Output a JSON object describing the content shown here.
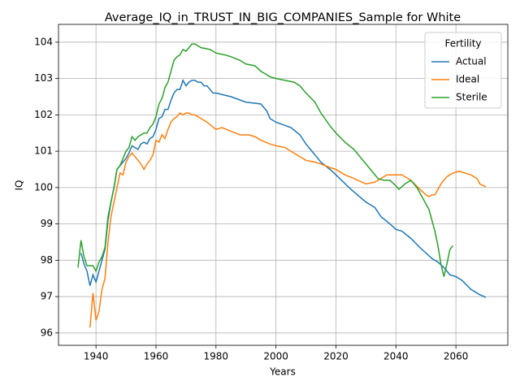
{
  "chart_data": {
    "type": "line",
    "title": "Average_IQ_in_TRUST_IN_BIG_COMPANIES_Sample for White",
    "x_label": "Years",
    "y_label": "IQ",
    "xlim": [
      1927.5,
      2077.3
    ],
    "ylim": [
      95.66,
      104.49
    ],
    "xticks": [
      1940,
      1960,
      1980,
      2000,
      2020,
      2040,
      2060
    ],
    "yticks": [
      96,
      97,
      98,
      99,
      100,
      101,
      102,
      103,
      104
    ],
    "grid": true,
    "legend_title": "Fertility",
    "legend_loc": "upper right",
    "series": [
      {
        "name": "Actual",
        "color": "#1f77b4",
        "x": [
          1935,
          1936,
          1937,
          1938,
          1939,
          1940,
          1941,
          1942,
          1943,
          1944,
          1945,
          1946,
          1947,
          1948,
          1949,
          1950,
          1951,
          1952,
          1953,
          1954,
          1955,
          1956,
          1957,
          1958,
          1959,
          1960,
          1961,
          1962,
          1963,
          1964,
          1965,
          1966,
          1967,
          1968,
          1969,
          1970,
          1971,
          1972,
          1973,
          1974,
          1975,
          1976,
          1977,
          1978,
          1979,
          1980,
          1985,
          1990,
          1995,
          1997,
          1998,
          2000,
          2005,
          2008,
          2010,
          2012,
          2015,
          2018,
          2020,
          2025,
          2030,
          2033,
          2035,
          2038,
          2040,
          2042,
          2045,
          2048,
          2050,
          2052,
          2054,
          2056,
          2058,
          2060,
          2062,
          2065,
          2068,
          2070
        ],
        "values": [
          98.2,
          97.9,
          97.7,
          97.3,
          97.6,
          97.4,
          97.7,
          98.0,
          98.3,
          99.1,
          99.6,
          100.0,
          100.5,
          100.6,
          100.7,
          100.8,
          100.95,
          101.15,
          101.1,
          101.05,
          101.2,
          101.25,
          101.2,
          101.35,
          101.4,
          101.6,
          101.9,
          101.95,
          102.15,
          102.15,
          102.4,
          102.6,
          102.7,
          102.7,
          102.95,
          102.8,
          102.9,
          102.95,
          102.95,
          102.9,
          102.9,
          102.8,
          102.8,
          102.7,
          102.6,
          102.6,
          102.5,
          102.35,
          102.3,
          102.1,
          101.9,
          101.8,
          101.65,
          101.45,
          101.2,
          101.0,
          100.7,
          100.5,
          100.35,
          99.95,
          99.6,
          99.45,
          99.2,
          99.0,
          98.85,
          98.8,
          98.6,
          98.35,
          98.2,
          98.05,
          97.95,
          97.8,
          97.6,
          97.55,
          97.45,
          97.2,
          97.05,
          96.98
        ]
      },
      {
        "name": "Ideal",
        "color": "#ff7f0e",
        "x": [
          1938,
          1939,
          1940,
          1941,
          1942,
          1943,
          1944,
          1945,
          1946,
          1947,
          1948,
          1949,
          1950,
          1951,
          1952,
          1953,
          1954,
          1955,
          1956,
          1957,
          1958,
          1959,
          1960,
          1961,
          1962,
          1963,
          1964,
          1965,
          1966,
          1967,
          1968,
          1969,
          1970,
          1971,
          1972,
          1973,
          1975,
          1977,
          1980,
          1982,
          1985,
          1988,
          1991,
          1993,
          1995,
          1998,
          2000,
          2003,
          2006,
          2010,
          2013,
          2015,
          2018,
          2020,
          2023,
          2026,
          2030,
          2033,
          2035,
          2037,
          2040,
          2042,
          2045,
          2048,
          2050,
          2051,
          2052,
          2053,
          2054,
          2055,
          2057,
          2059,
          2061,
          2063,
          2065,
          2067,
          2068,
          2070
        ],
        "values": [
          96.15,
          97.1,
          96.35,
          96.6,
          97.2,
          97.5,
          98.5,
          99.2,
          99.6,
          100.0,
          100.4,
          100.35,
          100.7,
          100.85,
          100.95,
          100.85,
          100.75,
          100.65,
          100.5,
          100.65,
          100.75,
          100.9,
          101.3,
          101.25,
          101.45,
          101.35,
          101.6,
          101.8,
          101.9,
          101.95,
          102.05,
          102.0,
          102.05,
          102.05,
          102.0,
          102.0,
          101.9,
          101.8,
          101.6,
          101.65,
          101.55,
          101.45,
          101.45,
          101.4,
          101.3,
          101.2,
          101.15,
          101.1,
          100.95,
          100.75,
          100.7,
          100.65,
          100.55,
          100.5,
          100.35,
          100.25,
          100.1,
          100.15,
          100.25,
          100.35,
          100.35,
          100.35,
          100.2,
          99.95,
          99.8,
          99.75,
          99.8,
          99.8,
          99.95,
          100.1,
          100.3,
          100.4,
          100.45,
          100.4,
          100.35,
          100.25,
          100.1,
          100.02
        ]
      },
      {
        "name": "Sterile",
        "color": "#2ca02c",
        "x": [
          1934,
          1935,
          1936,
          1937,
          1938,
          1939,
          1940,
          1941,
          1942,
          1943,
          1944,
          1945,
          1946,
          1947,
          1948,
          1949,
          1950,
          1951,
          1952,
          1953,
          1954,
          1955,
          1956,
          1957,
          1958,
          1959,
          1960,
          1961,
          1962,
          1963,
          1964,
          1965,
          1966,
          1967,
          1968,
          1969,
          1970,
          1971,
          1972,
          1973,
          1975,
          1978,
          1980,
          1983,
          1985,
          1988,
          1990,
          1993,
          1995,
          1998,
          2000,
          2003,
          2006,
          2008,
          2010,
          2013,
          2015,
          2018,
          2020,
          2023,
          2026,
          2028,
          2030,
          2032,
          2034,
          2036,
          2038,
          2040,
          2041,
          2043,
          2045,
          2047,
          2049,
          2051,
          2052,
          2053,
          2054,
          2055,
          2056,
          2057,
          2058,
          2059
        ],
        "values": [
          97.8,
          98.55,
          98.1,
          97.85,
          97.85,
          97.85,
          97.7,
          97.95,
          98.1,
          98.35,
          99.2,
          99.6,
          100.0,
          100.5,
          100.6,
          100.8,
          101.0,
          101.1,
          101.4,
          101.3,
          101.4,
          101.45,
          101.5,
          101.5,
          101.65,
          101.75,
          101.95,
          102.3,
          102.45,
          102.75,
          102.9,
          103.2,
          103.5,
          103.6,
          103.65,
          103.8,
          103.75,
          103.85,
          103.95,
          103.95,
          103.85,
          103.8,
          103.7,
          103.65,
          103.6,
          103.5,
          103.4,
          103.35,
          103.2,
          103.05,
          103.0,
          102.95,
          102.9,
          102.8,
          102.6,
          102.35,
          102.05,
          101.7,
          101.5,
          101.25,
          101.05,
          100.85,
          100.65,
          100.45,
          100.25,
          100.2,
          100.2,
          100.05,
          99.95,
          100.1,
          100.2,
          100.0,
          99.7,
          99.4,
          99.1,
          98.8,
          98.4,
          97.9,
          97.55,
          97.9,
          98.3,
          98.4
        ]
      }
    ]
  }
}
